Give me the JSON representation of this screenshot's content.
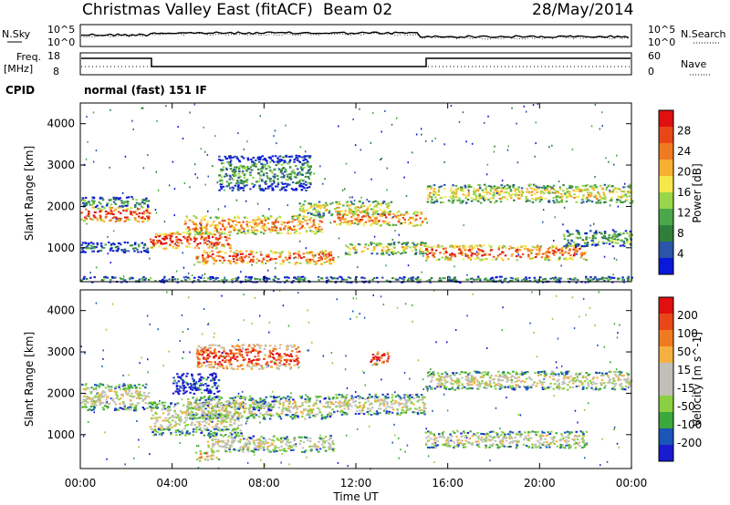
{
  "header": {
    "title": "Christmas Valley East (fitACF)",
    "beam": "Beam 02",
    "date": "28/May/2014"
  },
  "status_panels": {
    "nsky_label": "N.Sky",
    "nsearch_label": "N.Search",
    "noise_ticks": [
      "10^5",
      "10^0"
    ],
    "noise_ticks_right": [
      "10^5",
      "10^0"
    ],
    "freq_label": [
      "Freq.",
      "[MHz]"
    ],
    "freq_ticks": [
      "18",
      "8"
    ],
    "freq_ticks_right": [
      "60",
      "0"
    ],
    "nave_label": "Nave",
    "cpid_label": "CPID",
    "cpid_text": "normal (fast) 151 IF"
  },
  "colors": {
    "power": [
      "#0a18d8",
      "#2a55a8",
      "#2f7f3a",
      "#4aa84a",
      "#9ad64a",
      "#f5e84a",
      "#f5b030",
      "#f07a20",
      "#e84818",
      "#e01010"
    ],
    "velocity": [
      "#1a1ad0",
      "#1a55b8",
      "#3aa83a",
      "#8ad040",
      "#c0c0b8",
      "#c0c0b8",
      "#f5b040",
      "#f07a20",
      "#e84818",
      "#e01010"
    ]
  },
  "chart_data": [
    {
      "type": "heatmap",
      "name": "power",
      "ylabel": "Slant Range [km]",
      "yticks": [
        "1000",
        "2000",
        "3000",
        "4000"
      ],
      "ylim": [
        180,
        4500
      ],
      "xlim": [
        0,
        24
      ],
      "colorbar": {
        "label": "Power [dB]",
        "ticks": [
          "4",
          "8",
          "12",
          "16",
          "20",
          "24",
          "28"
        ],
        "range": [
          0,
          30
        ]
      },
      "bands": [
        {
          "t0": 0.0,
          "t1": 3.0,
          "r0": 1650,
          "r1": 2000,
          "level": 0.86
        },
        {
          "t0": 0.0,
          "t1": 3.0,
          "r0": 2000,
          "r1": 2250,
          "level": 0.3
        },
        {
          "t0": 0.0,
          "t1": 3.0,
          "r0": 900,
          "r1": 1150,
          "level": 0.22
        },
        {
          "t0": 3.0,
          "t1": 6.5,
          "r0": 1000,
          "r1": 1400,
          "level": 0.88
        },
        {
          "t0": 4.5,
          "t1": 10.5,
          "r0": 1350,
          "r1": 1800,
          "level": 0.7
        },
        {
          "t0": 5.0,
          "t1": 11.0,
          "r0": 620,
          "r1": 950,
          "level": 0.82
        },
        {
          "t0": 9.5,
          "t1": 13.5,
          "r0": 1800,
          "r1": 2150,
          "level": 0.55
        },
        {
          "t0": 11.0,
          "t1": 15.0,
          "r0": 1550,
          "r1": 1900,
          "level": 0.75
        },
        {
          "t0": 11.5,
          "t1": 15.0,
          "r0": 850,
          "r1": 1150,
          "level": 0.55
        },
        {
          "t0": 15.0,
          "t1": 22.0,
          "r0": 720,
          "r1": 1080,
          "level": 0.8
        },
        {
          "t0": 15.0,
          "t1": 24.0,
          "r0": 2100,
          "r1": 2550,
          "level": 0.55
        },
        {
          "t0": 21.0,
          "t1": 24.0,
          "r0": 1050,
          "r1": 1450,
          "level": 0.35
        },
        {
          "t0": 6.0,
          "t1": 10.0,
          "r0": 2400,
          "r1": 3250,
          "level": 0.3
        },
        {
          "t0": 0.0,
          "t1": 24.0,
          "r0": 180,
          "r1": 320,
          "level": 0.25
        }
      ]
    },
    {
      "type": "heatmap",
      "name": "velocity",
      "ylabel": "Slant Range [km]",
      "yticks": [
        "1000",
        "2000",
        "3000",
        "4000"
      ],
      "ylim": [
        180,
        4500
      ],
      "xlim": [
        0,
        24
      ],
      "xlabel": "Time UT",
      "xticks": [
        "00:00",
        "04:00",
        "08:00",
        "12:00",
        "16:00",
        "20:00",
        "00:00"
      ],
      "colorbar": {
        "label": "Velocity [m s^-1]",
        "ticks": [
          "200",
          "100",
          "50",
          "15",
          "-15",
          "-50",
          "-100",
          "-200"
        ],
        "range": [
          -250,
          250
        ]
      },
      "bands": [
        {
          "t0": 0.0,
          "t1": 3.0,
          "r0": 1600,
          "r1": 2250,
          "level": 0.5
        },
        {
          "t0": 3.0,
          "t1": 7.0,
          "r0": 1000,
          "r1": 1800,
          "level": 0.5
        },
        {
          "t0": 4.5,
          "t1": 11.0,
          "r0": 1400,
          "r1": 1950,
          "level": 0.5
        },
        {
          "t0": 5.5,
          "t1": 11.0,
          "r0": 600,
          "r1": 1000,
          "level": 0.5
        },
        {
          "t0": 11.0,
          "t1": 15.0,
          "r0": 1500,
          "r1": 2000,
          "level": 0.5
        },
        {
          "t0": 15.0,
          "t1": 24.0,
          "r0": 2100,
          "r1": 2550,
          "level": 0.5
        },
        {
          "t0": 15.0,
          "t1": 22.0,
          "r0": 700,
          "r1": 1100,
          "level": 0.5
        },
        {
          "t0": 5.0,
          "t1": 9.5,
          "r0": 2600,
          "r1": 3200,
          "level": 0.85
        },
        {
          "t0": 4.0,
          "t1": 6.0,
          "r0": 2000,
          "r1": 2500,
          "level": 0.1
        },
        {
          "t0": 12.6,
          "t1": 13.4,
          "r0": 2700,
          "r1": 3050,
          "level": 0.95
        },
        {
          "t0": 5.0,
          "t1": 6.0,
          "r0": 380,
          "r1": 620,
          "level": 0.68
        },
        {
          "t0": 7.5,
          "t1": 8.5,
          "r0": 1600,
          "r1": 1850,
          "level": 0.3
        }
      ]
    }
  ]
}
